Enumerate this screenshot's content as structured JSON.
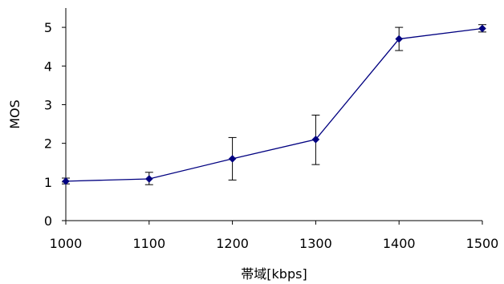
{
  "chart_data": {
    "type": "line",
    "title": "",
    "xlabel": "帯域[kbps]",
    "ylabel": "MOS",
    "x": [
      1000,
      1100,
      1200,
      1300,
      1400,
      1500
    ],
    "xlim": [
      1000,
      1500
    ],
    "ylim": [
      0,
      5.5
    ],
    "xticks": [
      "1000",
      "1100",
      "1200",
      "1300",
      "1400",
      "1500"
    ],
    "yticks": [
      "0",
      "1",
      "2",
      "3",
      "4",
      "5"
    ],
    "grid": false,
    "legend": "none",
    "series": [
      {
        "values": [
          1.02,
          1.08,
          1.6,
          2.1,
          4.7,
          4.97
        ],
        "error_low": [
          0.95,
          0.93,
          1.05,
          1.45,
          4.4,
          4.88
        ],
        "error_high": [
          1.1,
          1.25,
          2.15,
          2.73,
          5.0,
          5.07
        ],
        "color": "#000080"
      }
    ],
    "colors": {
      "line": "#000080",
      "marker": "#000080",
      "error_bar": "#000000",
      "axis": "#000000"
    }
  }
}
